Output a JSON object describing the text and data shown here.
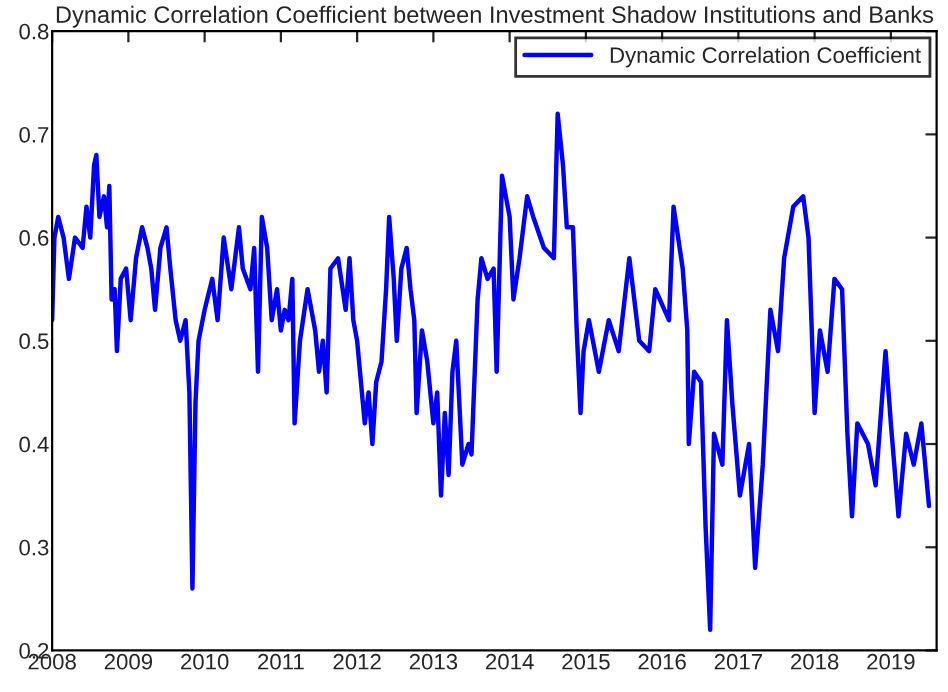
{
  "chart_data": {
    "type": "line",
    "title": "Dynamic Correlation Coefficient between Investment Shadow Institutions and Banks",
    "series": [
      {
        "name": "Dynamic Correlation Coefficient",
        "color": "#0000ff",
        "x": [
          2008.0,
          2008.03,
          2008.08,
          2008.15,
          2008.22,
          2008.3,
          2008.4,
          2008.45,
          2008.5,
          2008.55,
          2008.58,
          2008.62,
          2008.68,
          2008.72,
          2008.75,
          2008.78,
          2008.82,
          2008.85,
          2008.9,
          2008.97,
          2009.03,
          2009.1,
          2009.18,
          2009.25,
          2009.3,
          2009.35,
          2009.42,
          2009.5,
          2009.55,
          2009.62,
          2009.68,
          2009.75,
          2009.8,
          2009.84,
          2009.88,
          2009.92,
          2010.0,
          2010.1,
          2010.17,
          2010.25,
          2010.35,
          2010.45,
          2010.5,
          2010.6,
          2010.65,
          2010.7,
          2010.75,
          2010.82,
          2010.88,
          2010.95,
          2011.0,
          2011.05,
          2011.1,
          2011.15,
          2011.18,
          2011.25,
          2011.35,
          2011.45,
          2011.5,
          2011.55,
          2011.6,
          2011.65,
          2011.75,
          2011.85,
          2011.9,
          2011.95,
          2012.0,
          2012.05,
          2012.1,
          2012.15,
          2012.2,
          2012.25,
          2012.32,
          2012.38,
          2012.42,
          2012.48,
          2012.52,
          2012.58,
          2012.65,
          2012.7,
          2012.75,
          2012.78,
          2012.85,
          2012.92,
          2013.0,
          2013.05,
          2013.1,
          2013.15,
          2013.2,
          2013.25,
          2013.3,
          2013.38,
          2013.46,
          2013.5,
          2013.58,
          2013.63,
          2013.71,
          2013.79,
          2013.83,
          2013.9,
          2014.0,
          2014.05,
          2014.13,
          2014.23,
          2014.31,
          2014.45,
          2014.58,
          2014.63,
          2014.7,
          2014.75,
          2014.83,
          2014.88,
          2014.93,
          2014.97,
          2015.04,
          2015.17,
          2015.3,
          2015.43,
          2015.57,
          2015.7,
          2015.83,
          2015.91,
          2016.09,
          2016.15,
          2016.27,
          2016.33,
          2016.35,
          2016.42,
          2016.51,
          2016.57,
          2016.63,
          2016.68,
          2016.79,
          2016.85,
          2016.92,
          2017.02,
          2017.14,
          2017.22,
          2017.32,
          2017.42,
          2017.52,
          2017.6,
          2017.72,
          2017.85,
          2017.92,
          2018.0,
          2018.07,
          2018.17,
          2018.26,
          2018.36,
          2018.43,
          2018.49,
          2018.56,
          2018.7,
          2018.8,
          2018.93,
          2019.0,
          2019.1,
          2019.2,
          2019.3,
          2019.4,
          2019.5
        ],
        "values": [
          0.52,
          0.6,
          0.62,
          0.6,
          0.56,
          0.6,
          0.59,
          0.63,
          0.6,
          0.67,
          0.68,
          0.62,
          0.64,
          0.61,
          0.65,
          0.54,
          0.55,
          0.49,
          0.56,
          0.57,
          0.52,
          0.58,
          0.61,
          0.59,
          0.57,
          0.53,
          0.59,
          0.61,
          0.57,
          0.52,
          0.5,
          0.52,
          0.45,
          0.26,
          0.44,
          0.5,
          0.53,
          0.56,
          0.52,
          0.6,
          0.55,
          0.61,
          0.57,
          0.55,
          0.59,
          0.47,
          0.62,
          0.59,
          0.52,
          0.55,
          0.51,
          0.53,
          0.52,
          0.56,
          0.42,
          0.5,
          0.55,
          0.51,
          0.47,
          0.5,
          0.45,
          0.57,
          0.58,
          0.53,
          0.58,
          0.52,
          0.5,
          0.46,
          0.42,
          0.45,
          0.4,
          0.46,
          0.48,
          0.55,
          0.62,
          0.56,
          0.5,
          0.57,
          0.59,
          0.55,
          0.52,
          0.43,
          0.51,
          0.48,
          0.42,
          0.45,
          0.35,
          0.43,
          0.37,
          0.47,
          0.5,
          0.38,
          0.4,
          0.39,
          0.54,
          0.58,
          0.56,
          0.57,
          0.47,
          0.66,
          0.62,
          0.54,
          0.58,
          0.64,
          0.62,
          0.59,
          0.58,
          0.72,
          0.67,
          0.61,
          0.61,
          0.51,
          0.43,
          0.49,
          0.52,
          0.47,
          0.52,
          0.49,
          0.58,
          0.5,
          0.49,
          0.55,
          0.52,
          0.63,
          0.57,
          0.51,
          0.4,
          0.47,
          0.46,
          0.32,
          0.22,
          0.41,
          0.38,
          0.52,
          0.44,
          0.35,
          0.4,
          0.28,
          0.38,
          0.53,
          0.49,
          0.58,
          0.63,
          0.64,
          0.6,
          0.43,
          0.51,
          0.47,
          0.56,
          0.55,
          0.41,
          0.33,
          0.42,
          0.4,
          0.36,
          0.49,
          0.42,
          0.33,
          0.41,
          0.38,
          0.42,
          0.34
        ]
      }
    ],
    "xlim": [
      2008,
      2019.6
    ],
    "xticks": [
      2008,
      2009,
      2010,
      2011,
      2012,
      2013,
      2014,
      2015,
      2016,
      2017,
      2018,
      2019
    ],
    "ylim": [
      0.2,
      0.8
    ],
    "yticks": [
      0.2,
      0.3,
      0.4,
      0.5,
      0.6,
      0.7,
      0.8
    ],
    "legend": "top right",
    "grid": false,
    "line_style": "solid",
    "marker": "none"
  }
}
